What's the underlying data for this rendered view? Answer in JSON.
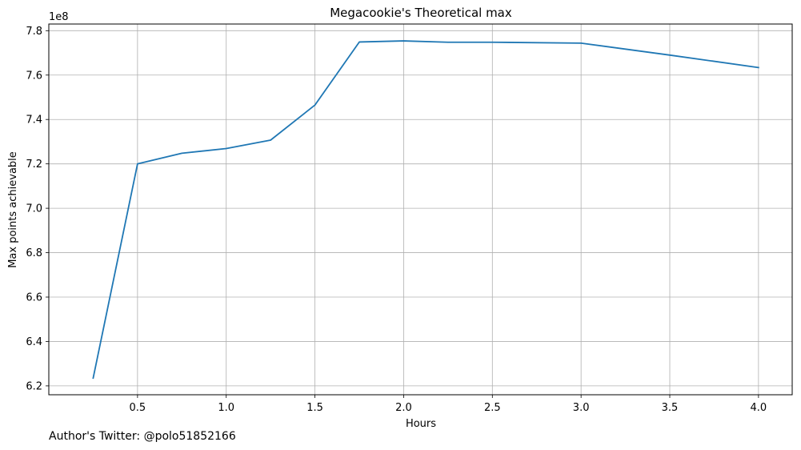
{
  "chart_data": {
    "type": "line",
    "title": "Megacookie's Theoretical max",
    "xlabel": "Hours",
    "ylabel": "Max points achievable",
    "y_offset_text": "1e8",
    "xlim": [
      0.0,
      4.19
    ],
    "ylim": [
      6.16,
      7.83
    ],
    "x_ticks": [
      0.5,
      1.0,
      1.5,
      2.0,
      2.5,
      3.0,
      3.5,
      4.0
    ],
    "x_tick_labels": [
      "0.5",
      "1.0",
      "1.5",
      "2.0",
      "2.5",
      "3.0",
      "3.5",
      "4.0"
    ],
    "y_ticks": [
      6.2,
      6.4,
      6.6,
      6.8,
      7.0,
      7.2,
      7.4,
      7.6,
      7.8
    ],
    "y_tick_labels": [
      "6.2",
      "6.4",
      "6.6",
      "6.8",
      "7.0",
      "7.2",
      "7.4",
      "7.6",
      "7.8"
    ],
    "grid": true,
    "series": [
      {
        "color": "#1f77b4",
        "x": [
          0.25,
          0.5,
          0.75,
          1.0,
          1.25,
          1.5,
          1.75,
          2.0,
          2.25,
          2.5,
          3.0,
          3.5,
          4.0
        ],
        "y": [
          6.235,
          7.2,
          7.248,
          7.269,
          7.307,
          7.465,
          7.749,
          7.754,
          7.748,
          7.748,
          7.744,
          7.69,
          7.634
        ]
      }
    ]
  },
  "footnote": "Author's Twitter: @polo51852166"
}
